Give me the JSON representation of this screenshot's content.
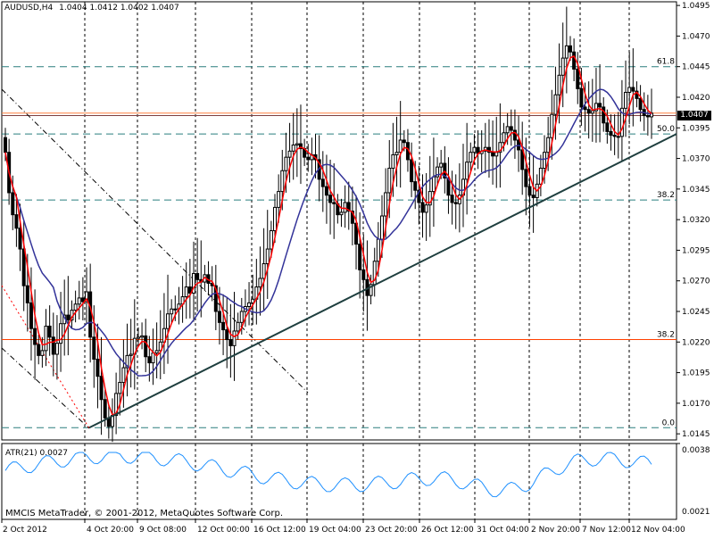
{
  "header": {
    "symbol": "AUDUSD,H4",
    "ohlc": "1.0404 1.0412 1.0402 1.0407"
  },
  "price_tag": "1.0407",
  "indicator": {
    "label": "ATR(21) 0.0027",
    "ticks": [
      "0.0038",
      "0.0021"
    ]
  },
  "copyright": "MMCIS MetaTrader, © 2001-2012, MetaQuotes Software Corp.",
  "colors": {
    "background": "#ffffff",
    "candles": "#000000",
    "fast_ma": "#ff0000",
    "slow_ma": "#333399",
    "trendline": "#1f3f3f",
    "fib_teal": "#2a7f7f",
    "fib_orange": "#ff4000",
    "atr_line": "#1e90ff",
    "price_tag_bg": "#000000"
  },
  "chart_data": {
    "type": "candlestick",
    "symbol": "AUDUSD",
    "timeframe": "H4",
    "y_ticks": [
      "1.0495",
      "1.0470",
      "1.0445",
      "1.0420",
      "1.0395",
      "1.0370",
      "1.0345",
      "1.0320",
      "1.0295",
      "1.0270",
      "1.0245",
      "1.0220",
      "1.0195",
      "1.0170",
      "1.0145"
    ],
    "ylim": [
      1.014,
      1.0498
    ],
    "x_ticks": [
      "2 Oct 2012",
      "4 Oct 20:00",
      "9 Oct 08:00",
      "12 Oct 00:00",
      "16 Oct 12:00",
      "19 Oct 04:00",
      "23 Oct 20:00",
      "26 Oct 12:00",
      "31 Oct 04:00",
      "2 Nov 20:00",
      "7 Nov 12:00",
      "12 Nov 04:00"
    ],
    "horizontal_levels": [
      {
        "label": "61.8",
        "price": 1.0445,
        "color": "#2a7f7f",
        "style": "dashed"
      },
      {
        "label": "50.0",
        "price": 1.039,
        "color": "#2a7f7f",
        "style": "dashed"
      },
      {
        "label": "38.2",
        "price": 1.0336,
        "color": "#2a7f7f",
        "style": "dashed"
      },
      {
        "label": "0.0",
        "price": 1.015,
        "color": "#2a7f7f",
        "style": "dashed"
      },
      {
        "label": "38.2",
        "price": 1.0222,
        "color": "#ff4000",
        "style": "solid"
      },
      {
        "label": "",
        "price": 1.0407,
        "color": "#ff8040",
        "style": "solid"
      },
      {
        "label": "",
        "price": 1.0405,
        "color": "#804040",
        "style": "solid"
      }
    ],
    "trendline": {
      "from": [
        "4 Oct 20:00",
        1.015
      ],
      "to": [
        "12 Nov 04:00",
        1.039
      ]
    },
    "candle_closes": [
      1.0375,
      1.0342,
      1.0324,
      1.0313,
      1.0296,
      1.0266,
      1.0252,
      1.0231,
      1.0218,
      1.0209,
      1.0213,
      1.0233,
      1.0224,
      1.021,
      1.0219,
      1.0235,
      1.0242,
      1.0238,
      1.0246,
      1.0251,
      1.0256,
      1.0253,
      1.0261,
      1.0224,
      1.0206,
      1.0192,
      1.0173,
      1.0158,
      1.0151,
      1.016,
      1.0178,
      1.0187,
      1.0199,
      1.0209,
      1.021,
      1.0223,
      1.0224,
      1.0225,
      1.0208,
      1.0203,
      1.0211,
      1.0213,
      1.022,
      1.0231,
      1.0243,
      1.0247,
      1.0247,
      1.0251,
      1.0257,
      1.0265,
      1.026,
      1.0276,
      1.0271,
      1.0269,
      1.0275,
      1.0268,
      1.0266,
      1.0245,
      1.0236,
      1.023,
      1.0222,
      1.0217,
      1.0229,
      1.0236,
      1.0245,
      1.0249,
      1.0252,
      1.0255,
      1.0265,
      1.0272,
      1.0284,
      1.0296,
      1.0311,
      1.033,
      1.0343,
      1.036,
      1.0371,
      1.0376,
      1.0381,
      1.0382,
      1.0378,
      1.0371,
      1.0369,
      1.0373,
      1.0369,
      1.0353,
      1.0347,
      1.034,
      1.0334,
      1.0333,
      1.0324,
      1.0326,
      1.0334,
      1.0327,
      1.0317,
      1.03,
      1.0279,
      1.0271,
      1.0258,
      1.0267,
      1.0286,
      1.0304,
      1.0323,
      1.0342,
      1.0362,
      1.0373,
      1.0375,
      1.0385,
      1.0383,
      1.0369,
      1.0351,
      1.0344,
      1.0334,
      1.0326,
      1.0332,
      1.0343,
      1.0355,
      1.0363,
      1.0366,
      1.0354,
      1.034,
      1.0334,
      1.0333,
      1.034,
      1.0353,
      1.0367,
      1.0375,
      1.0379,
      1.0374,
      1.0376,
      1.0379,
      1.0375,
      1.0372,
      1.0375,
      1.0383,
      1.0391,
      1.0396,
      1.0393,
      1.0385,
      1.0377,
      1.0361,
      1.0347,
      1.034,
      1.0338,
      1.0349,
      1.0362,
      1.0375,
      1.0387,
      1.0406,
      1.0422,
      1.0438,
      1.0452,
      1.0462,
      1.0457,
      1.0443,
      1.0427,
      1.0412,
      1.041,
      1.0407,
      1.0409,
      1.0415,
      1.0412,
      1.0399,
      1.0392,
      1.0389,
      1.0388,
      1.0388,
      1.0411,
      1.0424,
      1.0428,
      1.0425,
      1.0419,
      1.041,
      1.0405,
      1.0404,
      1.0407
    ]
  }
}
